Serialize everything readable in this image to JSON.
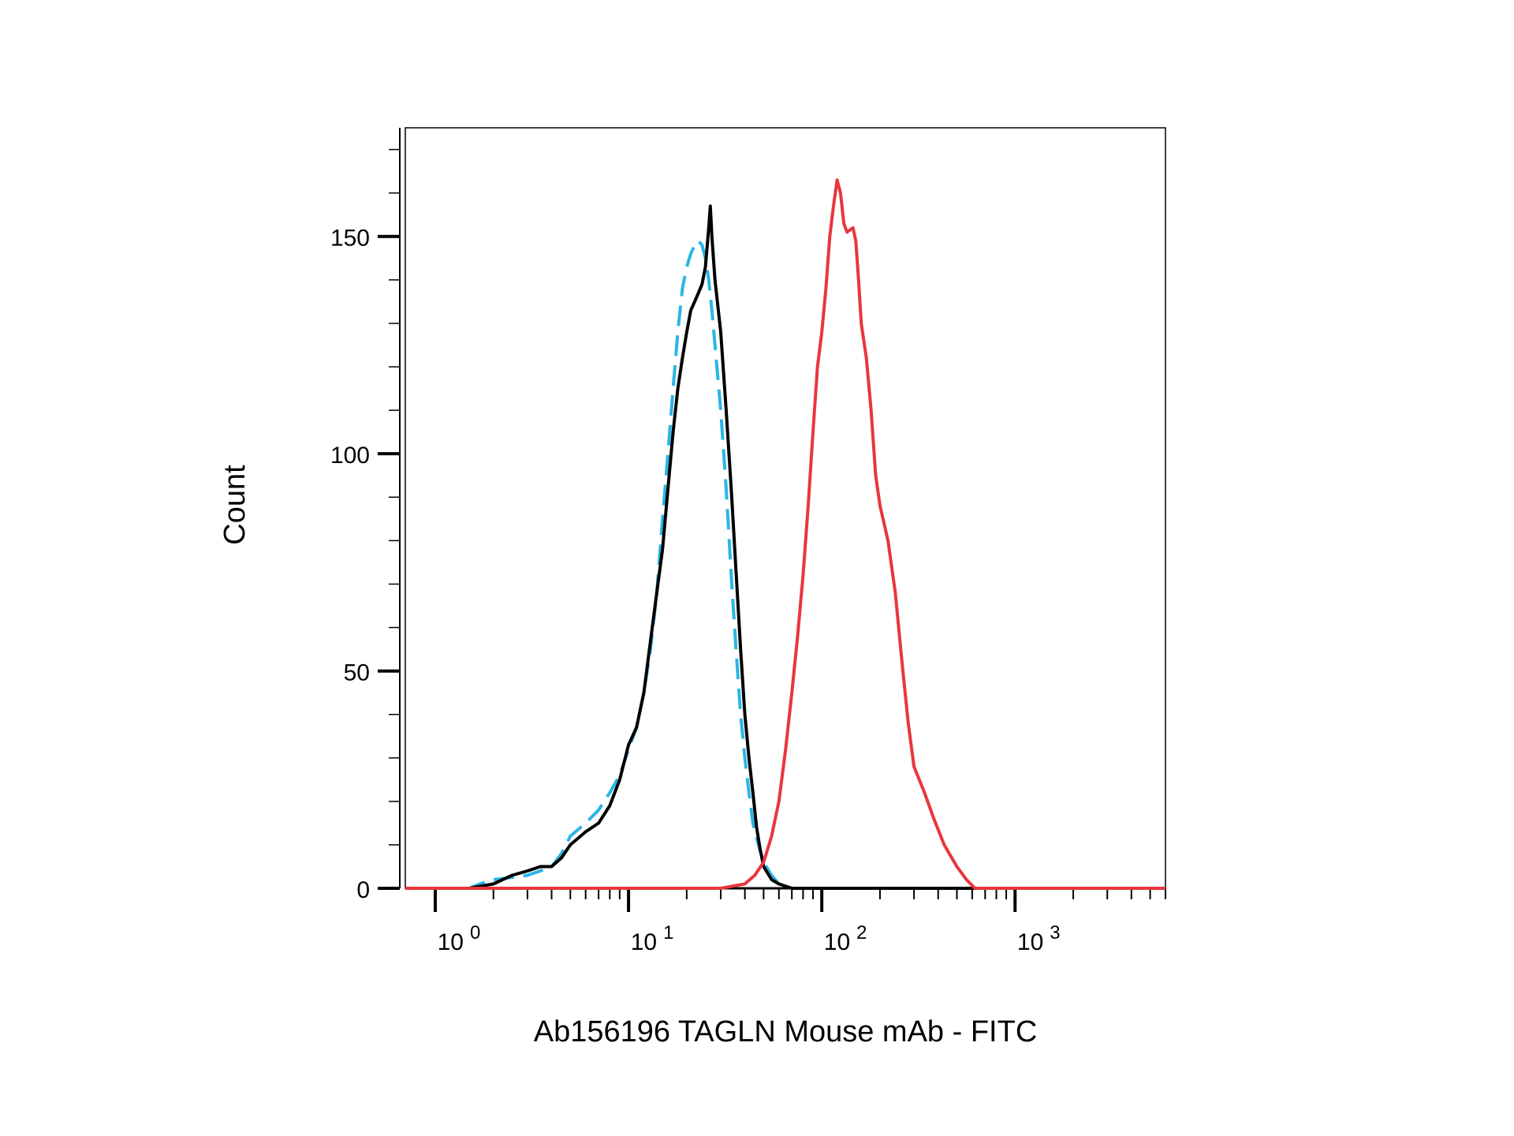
{
  "chart_data": {
    "type": "line",
    "title": "",
    "xlabel": "Ab156196 TAGLN Mouse mAb - FITC",
    "ylabel": "Count",
    "x_scale": "log",
    "xlim": [
      0.7,
      6000
    ],
    "ylim": [
      0,
      175
    ],
    "x_ticks": [
      {
        "value": 1,
        "base": "10",
        "exp": "0"
      },
      {
        "value": 10,
        "base": "10",
        "exp": "1"
      },
      {
        "value": 100,
        "base": "10",
        "exp": "2"
      },
      {
        "value": 1000,
        "base": "10",
        "exp": "3"
      }
    ],
    "y_ticks": [
      {
        "value": 0,
        "label": "0"
      },
      {
        "value": 50,
        "label": "50"
      },
      {
        "value": 100,
        "label": "100"
      },
      {
        "value": 150,
        "label": "150"
      }
    ],
    "grid": false,
    "series": [
      {
        "color": "#29b6e6",
        "dash": "dashed",
        "points": [
          [
            0.7,
            0
          ],
          [
            1.5,
            0
          ],
          [
            1.7,
            1
          ],
          [
            2,
            2
          ],
          [
            2.5,
            2.5
          ],
          [
            3,
            3
          ],
          [
            3.5,
            4
          ],
          [
            4,
            5
          ],
          [
            4.5,
            8
          ],
          [
            5,
            12
          ],
          [
            6,
            15
          ],
          [
            7,
            18
          ],
          [
            8,
            22
          ],
          [
            9,
            26
          ],
          [
            10,
            32
          ],
          [
            11,
            37
          ],
          [
            12,
            45
          ],
          [
            13,
            55
          ],
          [
            14,
            68
          ],
          [
            15,
            85
          ],
          [
            16,
            100
          ],
          [
            17,
            115
          ],
          [
            18,
            128
          ],
          [
            19,
            138
          ],
          [
            20,
            143
          ],
          [
            21,
            146
          ],
          [
            22,
            148
          ],
          [
            23,
            149
          ],
          [
            24,
            148
          ],
          [
            25,
            145
          ],
          [
            26,
            140
          ],
          [
            27,
            133
          ],
          [
            28,
            125
          ],
          [
            30,
            110
          ],
          [
            32,
            92
          ],
          [
            34,
            72
          ],
          [
            36,
            55
          ],
          [
            38,
            40
          ],
          [
            40,
            30
          ],
          [
            42,
            22
          ],
          [
            44,
            15
          ],
          [
            47,
            10
          ],
          [
            50,
            6
          ],
          [
            55,
            3
          ],
          [
            60,
            1
          ],
          [
            70,
            0
          ],
          [
            6000,
            0
          ]
        ]
      },
      {
        "color": "#000000",
        "dash": "solid",
        "points": [
          [
            0.7,
            0
          ],
          [
            1.5,
            0
          ],
          [
            2,
            1
          ],
          [
            2.5,
            3
          ],
          [
            3,
            4
          ],
          [
            3.5,
            5
          ],
          [
            4,
            5
          ],
          [
            4.5,
            7
          ],
          [
            5,
            10
          ],
          [
            6,
            13
          ],
          [
            7,
            15
          ],
          [
            8,
            19
          ],
          [
            9,
            25
          ],
          [
            10,
            33
          ],
          [
            11,
            37
          ],
          [
            12,
            45
          ],
          [
            13,
            57
          ],
          [
            14,
            68
          ],
          [
            15,
            78
          ],
          [
            16,
            92
          ],
          [
            17,
            105
          ],
          [
            18,
            115
          ],
          [
            19,
            122
          ],
          [
            20,
            128
          ],
          [
            21,
            133
          ],
          [
            22,
            135
          ],
          [
            23,
            137
          ],
          [
            24,
            139
          ],
          [
            25,
            143
          ],
          [
            26,
            152
          ],
          [
            26.5,
            157
          ],
          [
            27,
            150
          ],
          [
            28,
            140
          ],
          [
            30,
            128
          ],
          [
            32,
            110
          ],
          [
            34,
            92
          ],
          [
            36,
            73
          ],
          [
            38,
            55
          ],
          [
            40,
            40
          ],
          [
            42,
            30
          ],
          [
            44,
            22
          ],
          [
            46,
            14
          ],
          [
            48,
            9
          ],
          [
            50,
            5
          ],
          [
            55,
            2
          ],
          [
            60,
            1
          ],
          [
            70,
            0
          ],
          [
            6000,
            0
          ]
        ]
      },
      {
        "color": "#e8363c",
        "dash": "solid",
        "points": [
          [
            0.7,
            0
          ],
          [
            30,
            0
          ],
          [
            40,
            1
          ],
          [
            45,
            3
          ],
          [
            50,
            6
          ],
          [
            55,
            12
          ],
          [
            60,
            20
          ],
          [
            65,
            32
          ],
          [
            70,
            45
          ],
          [
            75,
            58
          ],
          [
            80,
            72
          ],
          [
            85,
            88
          ],
          [
            90,
            105
          ],
          [
            95,
            120
          ],
          [
            100,
            128
          ],
          [
            105,
            138
          ],
          [
            110,
            150
          ],
          [
            115,
            157
          ],
          [
            120,
            163
          ],
          [
            125,
            160
          ],
          [
            130,
            153
          ],
          [
            135,
            151
          ],
          [
            145,
            152
          ],
          [
            150,
            149
          ],
          [
            155,
            140
          ],
          [
            160,
            130
          ],
          [
            170,
            122
          ],
          [
            180,
            110
          ],
          [
            190,
            95
          ],
          [
            200,
            88
          ],
          [
            210,
            84
          ],
          [
            220,
            80
          ],
          [
            240,
            68
          ],
          [
            260,
            52
          ],
          [
            280,
            38
          ],
          [
            300,
            28
          ],
          [
            340,
            22
          ],
          [
            380,
            16
          ],
          [
            430,
            10
          ],
          [
            500,
            5
          ],
          [
            560,
            2
          ],
          [
            620,
            0
          ],
          [
            6000,
            0
          ]
        ]
      }
    ]
  }
}
